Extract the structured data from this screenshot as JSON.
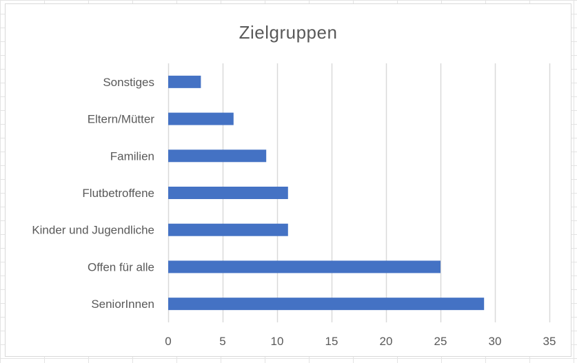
{
  "chart_data": {
    "type": "bar",
    "orientation": "horizontal",
    "title": "Zielgruppen",
    "categories": [
      "SeniorInnen",
      "Offen für alle",
      "Kinder und Jugendliche",
      "Flutbetroffene",
      "Familien",
      "Eltern/Mütter",
      "Sonstiges"
    ],
    "values": [
      29,
      25,
      11,
      11,
      9,
      6,
      3
    ],
    "xlabel": "",
    "ylabel": "",
    "xlim": [
      0,
      35
    ],
    "xticks": [
      0,
      5,
      10,
      15,
      20,
      25,
      30,
      35
    ],
    "grid": "vertical",
    "legend": "none",
    "bar_color": "#4472c4"
  }
}
